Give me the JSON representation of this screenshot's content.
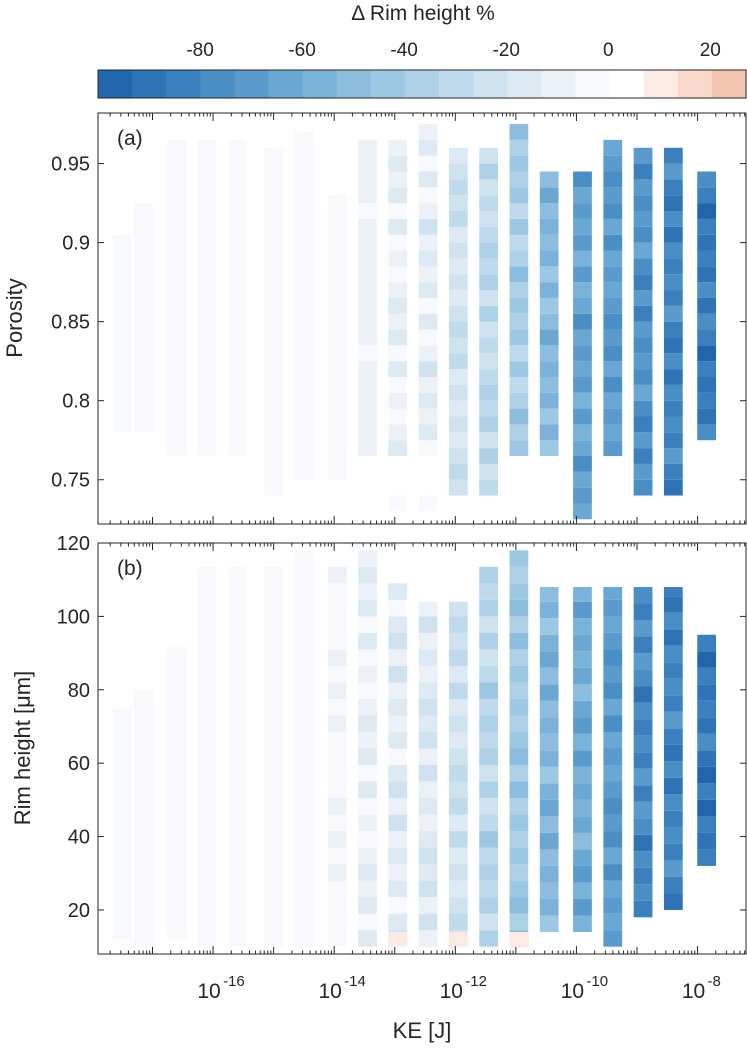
{
  "chart_data": [
    {
      "type": "colorbar",
      "title": "Δ Rim height %",
      "range": [
        -100,
        27
      ],
      "tick_labels": [
        "-80",
        "-60",
        "-40",
        "-20",
        "0",
        "20"
      ],
      "tick_values": [
        -80,
        -60,
        -40,
        -20,
        0,
        20
      ],
      "colors": [
        "#2166ac",
        "#2d73b6",
        "#3a80be",
        "#4a8ec6",
        "#5a9acc",
        "#6aa7d3",
        "#7bb2d9",
        "#8cbddf",
        "#9dc8e4",
        "#afd1e8",
        "#bfdaec",
        "#cfe2f0",
        "#dde9f3",
        "#ebf1f7",
        "#f7f9fc",
        "#ffffff",
        "#fcebe4",
        "#f8d9cb",
        "#f4c6b1"
      ]
    },
    {
      "type": "heatmap",
      "panel_label": "(a)",
      "xlabel": "KE [J]",
      "ylabel": "Porosity",
      "x_scale": "log",
      "x_range_log10": [
        -17.9,
        -7.2
      ],
      "ylim": [
        0.722,
        0.982
      ],
      "y_tick_labels": [
        "0.75",
        "0.8",
        "0.85",
        "0.9",
        "0.95"
      ],
      "y_ticks": [
        0.75,
        0.8,
        0.85,
        0.9,
        0.95
      ],
      "x_tick_labels": [
        "10",
        "10",
        "10",
        "10",
        "10"
      ],
      "x_tick_exponents": [
        "-16",
        "-14",
        "-12",
        "-10",
        "-8"
      ],
      "x_ticks_log10": [
        -16,
        -14,
        -12,
        -10,
        -8
      ],
      "bin_height": 0.01,
      "columns": [
        {
          "ke_log10": -17.5,
          "cells": [
            [
              0.78,
              0.905,
              -2
            ]
          ]
        },
        {
          "ke_log10": -17.15,
          "cells": [
            [
              0.78,
              0.925,
              -2
            ]
          ]
        },
        {
          "ke_log10": -16.6,
          "cells": [
            [
              0.765,
              0.965,
              -2
            ]
          ]
        },
        {
          "ke_log10": -16.1,
          "cells": [
            [
              0.765,
              0.965,
              -2
            ]
          ]
        },
        {
          "ke_log10": -15.6,
          "cells": [
            [
              0.765,
              0.965,
              -2
            ]
          ]
        },
        {
          "ke_log10": -15.0,
          "cells": [
            [
              0.74,
              0.965,
              -2
            ]
          ]
        },
        {
          "ke_log10": -14.5,
          "cells": [
            [
              0.75,
              0.975,
              -3
            ]
          ]
        },
        {
          "ke_log10": -13.95,
          "cells": [
            [
              0.75,
              0.93,
              -4
            ]
          ]
        },
        {
          "ke_log10": -13.45,
          "cells": [
            [
              0.765,
              0.965,
              -8
            ]
          ]
        },
        {
          "ke_log10": -12.95,
          "cells": [
            [
              0.765,
              0.965,
              -10
            ],
            [
              0.73,
              0.74,
              -3
            ]
          ]
        },
        {
          "ke_log10": -12.45,
          "cells": [
            [
              0.765,
              0.975,
              -12
            ],
            [
              0.73,
              0.74,
              -4
            ]
          ]
        },
        {
          "ke_log10": -11.95,
          "cells": [
            [
              0.74,
              0.965,
              -22
            ]
          ]
        },
        {
          "ke_log10": -11.45,
          "cells": [
            [
              0.74,
              0.965,
              -30
            ]
          ]
        },
        {
          "ke_log10": -10.95,
          "cells": [
            [
              0.765,
              0.975,
              -38
            ]
          ]
        },
        {
          "ke_log10": -10.45,
          "cells": [
            [
              0.765,
              0.95,
              -52
            ]
          ]
        },
        {
          "ke_log10": -9.9,
          "cells": [
            [
              0.725,
              0.95,
              -65
            ]
          ]
        },
        {
          "ke_log10": -9.4,
          "cells": [
            [
              0.765,
              0.965,
              -70
            ]
          ]
        },
        {
          "ke_log10": -8.9,
          "cells": [
            [
              0.74,
              0.965,
              -75
            ]
          ]
        },
        {
          "ke_log10": -8.4,
          "cells": [
            [
              0.74,
              0.965,
              -82
            ]
          ]
        },
        {
          "ke_log10": -7.85,
          "cells": [
            [
              0.775,
              0.95,
              -85
            ]
          ]
        }
      ]
    },
    {
      "type": "heatmap",
      "panel_label": "(b)",
      "xlabel": "KE [J]",
      "ylabel": "Rim height [μm]",
      "x_scale": "log",
      "x_range_log10": [
        -17.9,
        -7.2
      ],
      "ylim": [
        8,
        120
      ],
      "y_tick_labels": [
        "20",
        "40",
        "60",
        "80",
        "100",
        "120"
      ],
      "y_ticks": [
        20,
        40,
        60,
        80,
        100,
        120
      ],
      "bin_height": 4.5,
      "columns": [
        {
          "ke_log10": -17.5,
          "cells": [
            [
              12,
              75,
              -2
            ]
          ]
        },
        {
          "ke_log10": -17.15,
          "cells": [
            [
              10,
              80,
              -2
            ]
          ]
        },
        {
          "ke_log10": -16.6,
          "cells": [
            [
              12,
              92,
              -2
            ]
          ]
        },
        {
          "ke_log10": -16.1,
          "cells": [
            [
              10,
              114,
              -2
            ]
          ]
        },
        {
          "ke_log10": -15.6,
          "cells": [
            [
              10,
              114,
              -2
            ]
          ]
        },
        {
          "ke_log10": -15.0,
          "cells": [
            [
              10,
              114,
              -2
            ]
          ]
        },
        {
          "ke_log10": -14.5,
          "cells": [
            [
              10,
              120,
              -3
            ]
          ]
        },
        {
          "ke_log10": -13.95,
          "cells": [
            [
              10,
              114,
              -6
            ]
          ]
        },
        {
          "ke_log10": -13.45,
          "cells": [
            [
              10,
              120,
              -10
            ]
          ]
        },
        {
          "ke_log10": -12.95,
          "cells": [
            [
              10,
              110,
              -14
            ],
            [
              10,
              14,
              8
            ]
          ]
        },
        {
          "ke_log10": -12.45,
          "cells": [
            [
              10,
              104,
              -16
            ]
          ]
        },
        {
          "ke_log10": -11.95,
          "cells": [
            [
              10,
              104,
              -24
            ],
            [
              10,
              14,
              12
            ]
          ]
        },
        {
          "ke_log10": -11.45,
          "cells": [
            [
              10,
              114,
              -32
            ]
          ]
        },
        {
          "ke_log10": -10.95,
          "cells": [
            [
              10,
              120,
              -42
            ],
            [
              10,
              14,
              12
            ]
          ]
        },
        {
          "ke_log10": -10.45,
          "cells": [
            [
              14,
              108,
              -55
            ]
          ]
        },
        {
          "ke_log10": -9.9,
          "cells": [
            [
              14,
              108,
              -62
            ]
          ]
        },
        {
          "ke_log10": -9.4,
          "cells": [
            [
              10,
              108,
              -70
            ]
          ]
        },
        {
          "ke_log10": -8.9,
          "cells": [
            [
              18,
              108,
              -78
            ]
          ]
        },
        {
          "ke_log10": -8.4,
          "cells": [
            [
              20,
              108,
              -82
            ]
          ]
        },
        {
          "ke_log10": -7.85,
          "cells": [
            [
              32,
              97,
              -88
            ]
          ]
        }
      ]
    }
  ]
}
